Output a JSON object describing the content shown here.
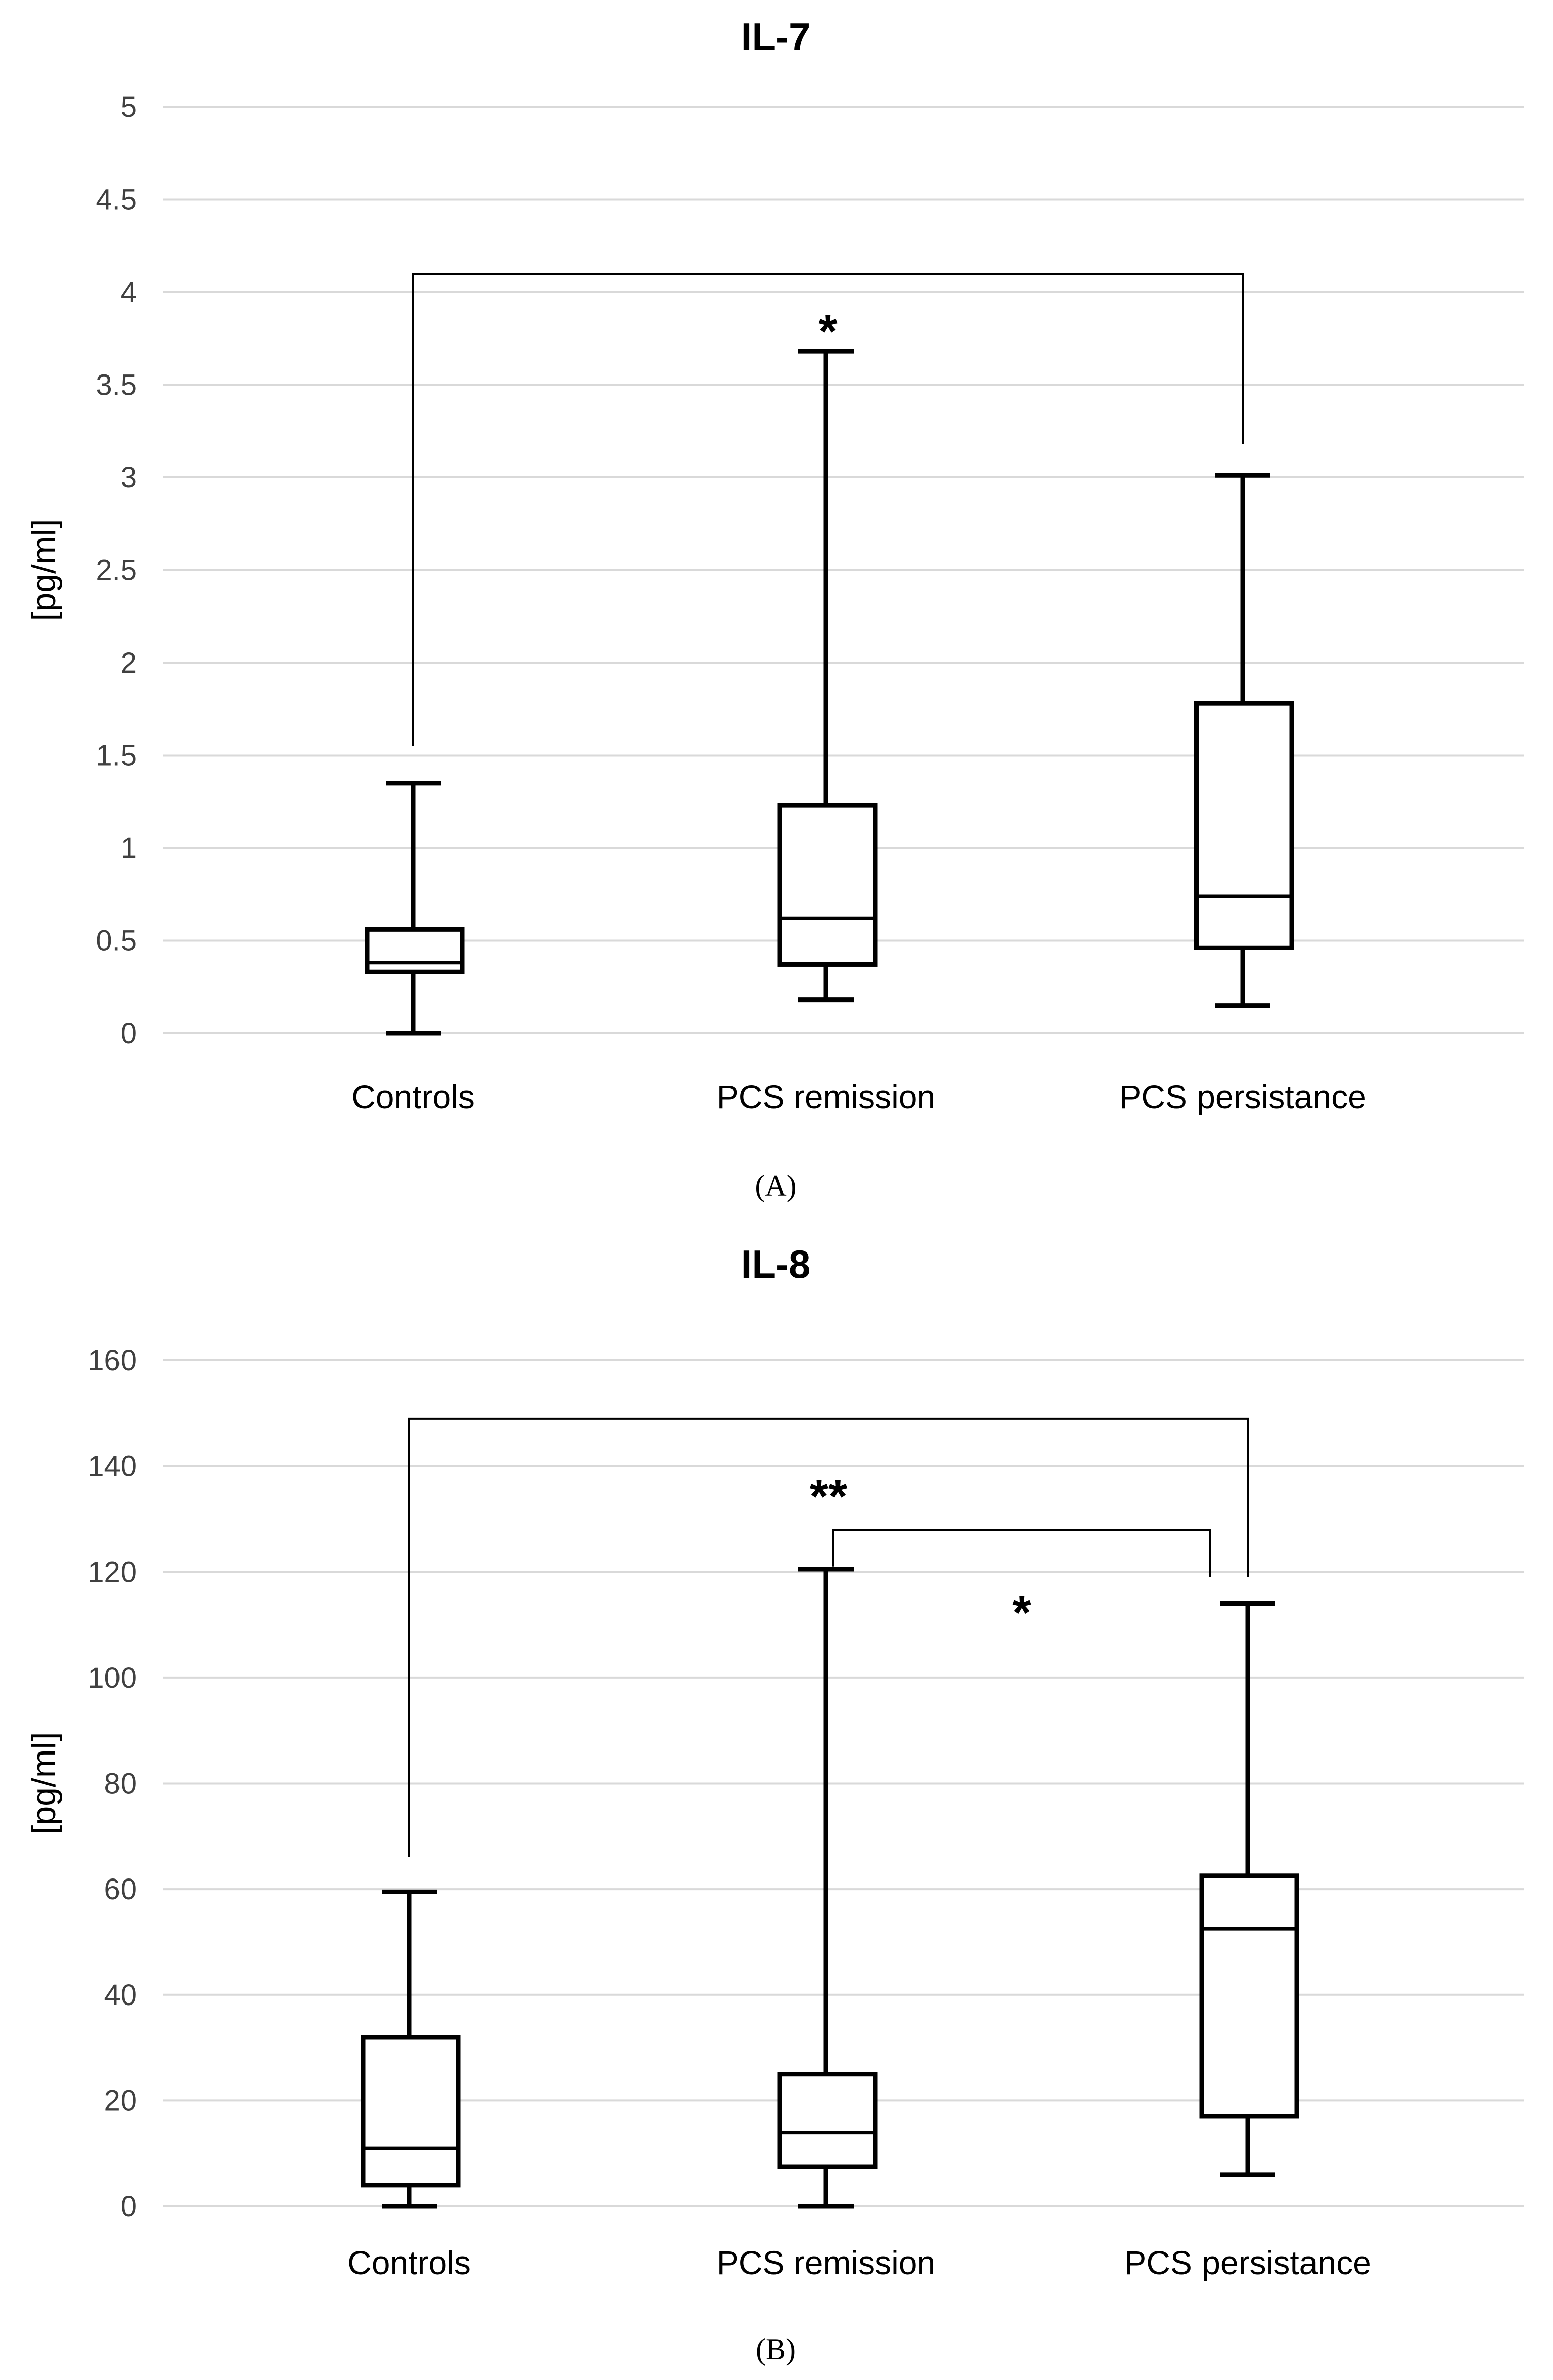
{
  "chart_data": [
    {
      "type": "box",
      "panel_label": "(A)",
      "title": "IL-7",
      "ylabel": "[pg/ml]",
      "xlabel": "",
      "ylim": [
        0,
        5
      ],
      "y_ticks": [
        0,
        0.5,
        1,
        1.5,
        2,
        2.5,
        3,
        3.5,
        4,
        4.5,
        5
      ],
      "y_tick_labels": [
        "0",
        "0.5",
        "1",
        "1.5",
        "2",
        "2.5",
        "3",
        "3.5",
        "4",
        "4.5",
        "5"
      ],
      "grid": true,
      "categories": [
        "Controls",
        "PCS remission",
        "PCS persistance"
      ],
      "series": [
        {
          "name": "Controls",
          "min": 0,
          "q1": 0.33,
          "median": 0.38,
          "q3": 0.56,
          "max": 1.35
        },
        {
          "name": "PCS remission",
          "min": 0.18,
          "q1": 0.37,
          "median": 0.62,
          "q3": 1.23,
          "max": 3.68
        },
        {
          "name": "PCS persistance",
          "min": 0.15,
          "q1": 0.46,
          "median": 0.74,
          "q3": 1.78,
          "max": 3.01
        }
      ],
      "significance": [
        {
          "from": "Controls",
          "to": "PCS persistance",
          "label": "*"
        }
      ]
    },
    {
      "type": "box",
      "panel_label": "(B)",
      "title": "IL-8",
      "ylabel": "[pg/ml]",
      "xlabel": "",
      "ylim": [
        0,
        160
      ],
      "y_ticks": [
        0,
        20,
        40,
        60,
        80,
        100,
        120,
        140,
        160
      ],
      "y_tick_labels": [
        "0",
        "20",
        "40",
        "60",
        "80",
        "100",
        "120",
        "140",
        "160"
      ],
      "grid": true,
      "categories": [
        "Controls",
        "PCS remission",
        "PCS persistance"
      ],
      "series": [
        {
          "name": "Controls",
          "min": 0,
          "q1": 4,
          "median": 11,
          "q3": 32,
          "max": 59.5
        },
        {
          "name": "PCS remission",
          "min": 0,
          "q1": 7.5,
          "median": 14,
          "q3": 25,
          "max": 120.5
        },
        {
          "name": "PCS persistance",
          "min": 6,
          "q1": 17,
          "median": 52.5,
          "q3": 62.5,
          "max": 114
        }
      ],
      "significance": [
        {
          "from": "Controls",
          "to": "PCS persistance",
          "label": "**"
        },
        {
          "from": "PCS remission",
          "to": "PCS persistance",
          "label": "*"
        }
      ]
    }
  ]
}
